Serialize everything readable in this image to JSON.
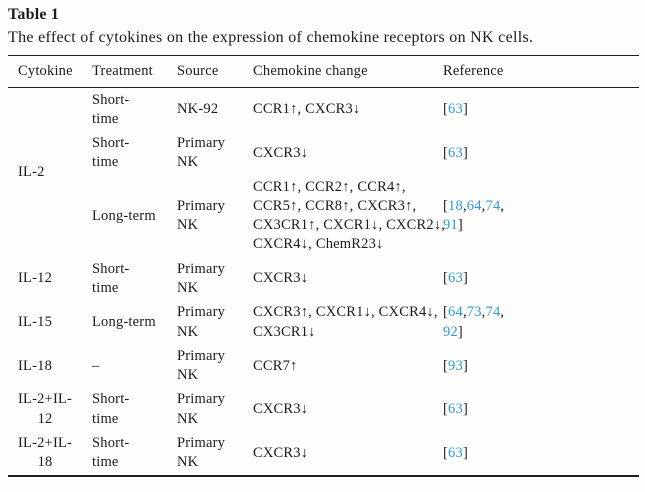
{
  "caption": {
    "label": "Table 1",
    "description": "The effect of cytokines on the expression of chemokine receptors on NK cells."
  },
  "colors": {
    "link": "#2e9bd6",
    "text": "#1c1c1c",
    "rule": "#1e1e1e",
    "background": "#fdfdfc"
  },
  "table": {
    "headers": [
      "Cytokine",
      "Treatment",
      "Source",
      "Chemokine change",
      "Reference"
    ],
    "rows": [
      {
        "cytokine": "IL-2",
        "treatment": "Short-\ntime",
        "source": "NK-92",
        "change": "CCR1↑, CXCR3↓",
        "reference": [
          {
            "t": "["
          },
          {
            "t": "63",
            "link": true
          },
          {
            "t": "]"
          }
        ]
      },
      {
        "treatment": "Short-\ntime",
        "source": "Primary\nNK",
        "change": "CXCR3↓",
        "reference": [
          {
            "t": "["
          },
          {
            "t": "63",
            "link": true
          },
          {
            "t": "]"
          }
        ]
      },
      {
        "treatment": "Long-term",
        "source": "Primary\nNK",
        "change": "CCR1↑, CCR2↑, CCR4↑,\nCCR5↑, CCR8↑, CXCR3↑,\nCX3CR1↑, CXCR1↓, CXCR2↓,\nCXCR4↓, ChemR23↓",
        "reference": [
          {
            "t": "["
          },
          {
            "t": "18",
            "link": true
          },
          {
            "t": ","
          },
          {
            "t": "64",
            "link": true
          },
          {
            "t": ","
          },
          {
            "t": "74",
            "link": true
          },
          {
            "t": ","
          },
          {
            "br": true
          },
          {
            "t": "91",
            "link": true
          },
          {
            "t": "]"
          }
        ]
      },
      {
        "cytokine": "IL-12",
        "treatment": "Short-\ntime",
        "source": "Primary\nNK",
        "change": "CXCR3↓",
        "reference": [
          {
            "t": "["
          },
          {
            "t": "63",
            "link": true
          },
          {
            "t": "]"
          }
        ]
      },
      {
        "cytokine": "IL-15",
        "treatment": "Long-term",
        "source": "Primary\nNK",
        "change": "CXCR3↑, CXCR1↓, CXCR4↓,\nCX3CR1↓",
        "reference": [
          {
            "t": "["
          },
          {
            "t": "64",
            "link": true
          },
          {
            "t": ","
          },
          {
            "t": "73",
            "link": true
          },
          {
            "t": ","
          },
          {
            "t": "74",
            "link": true
          },
          {
            "t": ","
          },
          {
            "br": true
          },
          {
            "t": "92",
            "link": true
          },
          {
            "t": "]"
          }
        ]
      },
      {
        "cytokine": "IL-18",
        "treatment": "–",
        "source": "Primary\nNK",
        "change": "CCR7↑",
        "reference": [
          {
            "t": "["
          },
          {
            "t": "93",
            "link": true
          },
          {
            "t": "]"
          }
        ]
      },
      {
        "cytokine": "IL-2+IL-\n12",
        "treatment": "Short-\ntime",
        "source": "Primary\nNK",
        "change": "CXCR3↓",
        "reference": [
          {
            "t": "["
          },
          {
            "t": "63",
            "link": true
          },
          {
            "t": "]"
          }
        ]
      },
      {
        "cytokine": "IL-2+IL-\n18",
        "treatment": "Short-\ntime",
        "source": "Primary\nNK",
        "change": "CXCR3↓",
        "reference": [
          {
            "t": "["
          },
          {
            "t": "63",
            "link": true
          },
          {
            "t": "]"
          }
        ]
      }
    ]
  }
}
